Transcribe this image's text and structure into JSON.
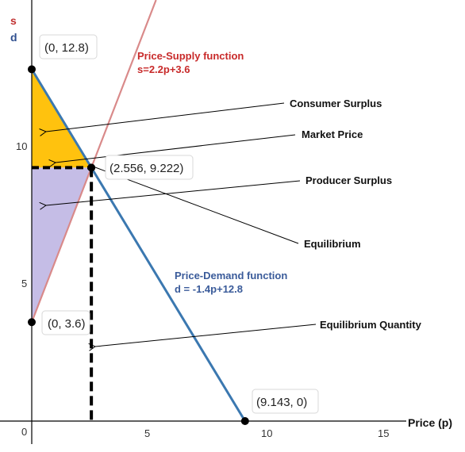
{
  "axes": {
    "s_label": "s",
    "d_label": "d",
    "x_label": "Price (p)",
    "x_ticks": [
      "0",
      "5",
      "10",
      "15"
    ],
    "y_ticks": [
      "5",
      "10"
    ]
  },
  "supply": {
    "title": "Price-Supply function",
    "equation": "s=2.2p+3.6",
    "color": "#c82a2a",
    "slope": 2.2,
    "intercept": 3.6
  },
  "demand": {
    "title": "Price-Demand function",
    "equation": "d = -1.4p+12.8",
    "color": "#3a5b9a",
    "slope": -1.4,
    "intercept": 12.8
  },
  "points": [
    {
      "label": "(0, 12.8)",
      "x": 0,
      "y": 12.8
    },
    {
      "label": "(2.556, 9.222)",
      "x": 2.556,
      "y": 9.222
    },
    {
      "label": "(0, 3.6)",
      "x": 0,
      "y": 3.6
    },
    {
      "label": "(9.143, 0)",
      "x": 9.143,
      "y": 0
    }
  ],
  "annotations": {
    "consumer_surplus": "Consumer Surplus",
    "market_price": "Market  Price",
    "producer_surplus": "Producer Surplus",
    "equilibrium": "Equilibrium",
    "equilibrium_quantity": "Equilibrium Quantity"
  },
  "colors": {
    "consumer_surplus_fill": "#ffc20e",
    "producer_surplus_fill": "#c5bde6",
    "demand_line": "#3b78b0",
    "supply_line": "#d98a8a"
  }
}
